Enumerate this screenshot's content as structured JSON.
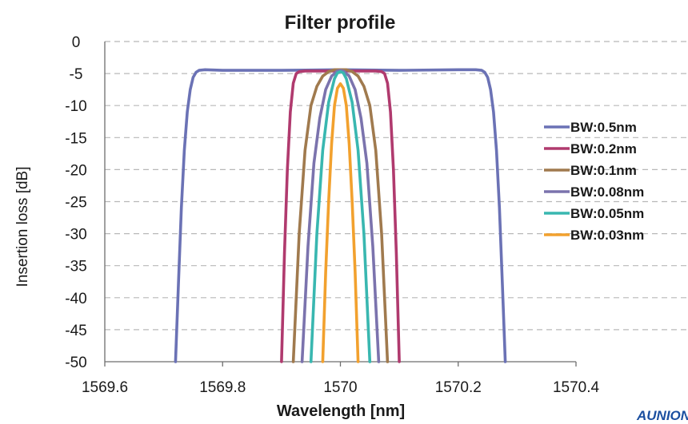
{
  "chart_data": {
    "type": "line",
    "title": "Filter profile",
    "xlabel": "Wavelength [nm]",
    "ylabel": "Insertion loss [dB]",
    "xlim": [
      1569.6,
      1570.4
    ],
    "ylim": [
      -50,
      0
    ],
    "xticks": [
      "1569.6",
      "1569.8",
      "1570",
      "1570.2",
      "1570.4"
    ],
    "yticks": [
      "0",
      "-5",
      "-10",
      "-15",
      "-20",
      "-25",
      "-30",
      "-35",
      "-40",
      "-45",
      "-50"
    ],
    "grid": true,
    "legend_position": "right",
    "series": [
      {
        "name": "BW:0.5nm",
        "color": "#6b72b5",
        "x": [
          1569.72,
          1569.725,
          1569.73,
          1569.735,
          1569.74,
          1569.745,
          1569.75,
          1569.755,
          1569.76,
          1569.77,
          1569.8,
          1569.9,
          1570.0,
          1570.1,
          1570.2,
          1570.23,
          1570.24,
          1570.245,
          1570.25,
          1570.255,
          1570.26,
          1570.265,
          1570.27,
          1570.275,
          1570.28
        ],
        "y": [
          -50,
          -38,
          -26,
          -17,
          -11,
          -7.5,
          -5.6,
          -4.8,
          -4.5,
          -4.4,
          -4.5,
          -4.5,
          -4.4,
          -4.5,
          -4.4,
          -4.4,
          -4.5,
          -4.8,
          -5.6,
          -7.5,
          -11,
          -17,
          -26,
          -38,
          -50
        ]
      },
      {
        "name": "BW:0.2nm",
        "color": "#b03a6e",
        "x": [
          1569.9,
          1569.905,
          1569.91,
          1569.915,
          1569.92,
          1569.925,
          1569.93,
          1569.94,
          1570.0,
          1570.06,
          1570.07,
          1570.075,
          1570.08,
          1570.085,
          1570.09,
          1570.095,
          1570.1
        ],
        "y": [
          -50,
          -33,
          -20,
          -11,
          -6.5,
          -5.0,
          -4.7,
          -4.6,
          -4.6,
          -4.6,
          -4.7,
          -5.0,
          -6.5,
          -11,
          -20,
          -33,
          -50
        ]
      },
      {
        "name": "BW:0.1nm",
        "color": "#a07a4e",
        "x": [
          1569.92,
          1569.93,
          1569.94,
          1569.95,
          1569.96,
          1569.97,
          1569.98,
          1569.99,
          1570.0,
          1570.01,
          1570.02,
          1570.03,
          1570.04,
          1570.05,
          1570.06,
          1570.07,
          1570.08
        ],
        "y": [
          -50,
          -30,
          -17,
          -10,
          -7,
          -5.4,
          -4.7,
          -4.4,
          -4.4,
          -4.4,
          -4.7,
          -5.4,
          -7,
          -10,
          -17,
          -30,
          -50
        ]
      },
      {
        "name": "BW:0.08nm",
        "color": "#7b73ad",
        "x": [
          1569.935,
          1569.945,
          1569.955,
          1569.965,
          1569.975,
          1569.985,
          1569.995,
          1570.0,
          1570.005,
          1570.015,
          1570.025,
          1570.035,
          1570.045,
          1570.055,
          1570.065
        ],
        "y": [
          -50,
          -32,
          -19,
          -12,
          -7.5,
          -5.4,
          -4.6,
          -4.5,
          -4.6,
          -5.4,
          -7.5,
          -12,
          -19,
          -32,
          -50
        ]
      },
      {
        "name": "BW:0.05nm",
        "color": "#39b7b0",
        "x": [
          1569.95,
          1569.96,
          1569.97,
          1569.98,
          1569.99,
          1569.995,
          1570.0,
          1570.005,
          1570.01,
          1570.02,
          1570.03,
          1570.04,
          1570.05
        ],
        "y": [
          -50,
          -30,
          -17,
          -9.5,
          -5.8,
          -4.9,
          -4.7,
          -4.9,
          -5.8,
          -9.5,
          -17,
          -30,
          -50
        ]
      },
      {
        "name": "BW:0.03nm",
        "color": "#f2a12e",
        "x": [
          1569.97,
          1569.975,
          1569.98,
          1569.985,
          1569.99,
          1569.995,
          1570.0,
          1570.005,
          1570.01,
          1570.015,
          1570.02,
          1570.025,
          1570.03
        ],
        "y": [
          -50,
          -36,
          -25,
          -16,
          -10,
          -7.3,
          -6.6,
          -7.3,
          -10,
          -16,
          -25,
          -36,
          -50
        ]
      }
    ]
  },
  "logo_text": "AUNION"
}
